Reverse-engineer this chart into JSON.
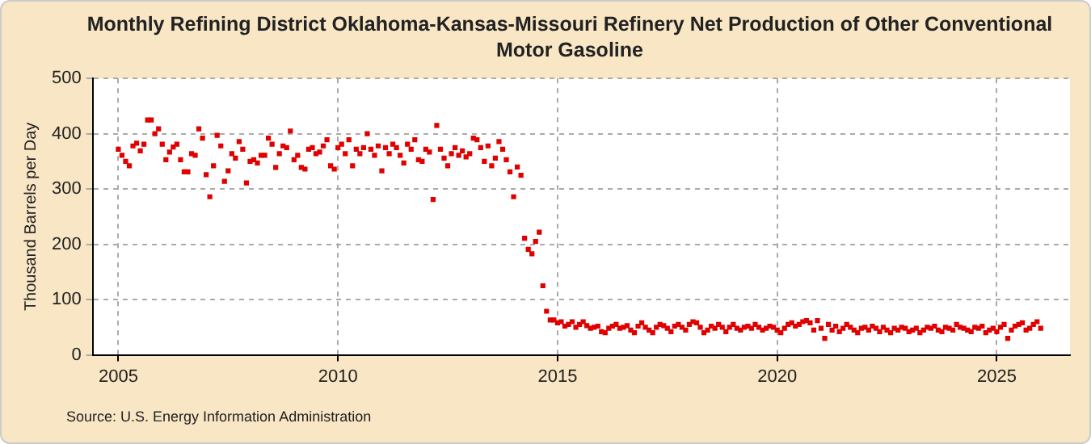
{
  "chart_data": {
    "type": "scatter",
    "title": "Monthly Refining District Oklahoma-Kansas-Missouri Refinery Net Production of Other Conventional Motor Gasoline",
    "ylabel": "Thousand Barrels per Day",
    "annotations": [
      "Source: U.S. Energy Information Administration"
    ],
    "xlim": [
      "2004-06",
      "2026-09"
    ],
    "xticks": [
      "2005",
      "2010",
      "2015",
      "2020",
      "2025"
    ],
    "ylim": [
      0,
      500
    ],
    "yticks": [
      0,
      100,
      200,
      300,
      400,
      500
    ],
    "grid": true,
    "marker": "square",
    "legend": false,
    "series": [
      {
        "color": "#e00000",
        "x": [
          "2005-01",
          "2005-02",
          "2005-03",
          "2005-04",
          "2005-05",
          "2005-06",
          "2005-07",
          "2005-08",
          "2005-09",
          "2005-10",
          "2005-11",
          "2005-12",
          "2006-01",
          "2006-02",
          "2006-03",
          "2006-04",
          "2006-05",
          "2006-06",
          "2006-07",
          "2006-08",
          "2006-09",
          "2006-10",
          "2006-11",
          "2006-12",
          "2007-01",
          "2007-02",
          "2007-03",
          "2007-04",
          "2007-05",
          "2007-06",
          "2007-07",
          "2007-08",
          "2007-09",
          "2007-10",
          "2007-11",
          "2007-12",
          "2008-01",
          "2008-02",
          "2008-03",
          "2008-04",
          "2008-05",
          "2008-06",
          "2008-07",
          "2008-08",
          "2008-09",
          "2008-10",
          "2008-11",
          "2008-12",
          "2009-01",
          "2009-02",
          "2009-03",
          "2009-04",
          "2009-05",
          "2009-06",
          "2009-07",
          "2009-08",
          "2009-09",
          "2009-10",
          "2009-11",
          "2009-12",
          "2010-01",
          "2010-02",
          "2010-03",
          "2010-04",
          "2010-05",
          "2010-06",
          "2010-07",
          "2010-08",
          "2010-09",
          "2010-10",
          "2010-11",
          "2010-12",
          "2011-01",
          "2011-02",
          "2011-03",
          "2011-04",
          "2011-05",
          "2011-06",
          "2011-07",
          "2011-08",
          "2011-09",
          "2011-10",
          "2011-11",
          "2011-12",
          "2012-01",
          "2012-02",
          "2012-03",
          "2012-04",
          "2012-05",
          "2012-06",
          "2012-07",
          "2012-08",
          "2012-09",
          "2012-10",
          "2012-11",
          "2012-12",
          "2013-01",
          "2013-02",
          "2013-03",
          "2013-04",
          "2013-05",
          "2013-06",
          "2013-07",
          "2013-08",
          "2013-09",
          "2013-10",
          "2013-11",
          "2013-12",
          "2014-01",
          "2014-02",
          "2014-03",
          "2014-04",
          "2014-05",
          "2014-06",
          "2014-07",
          "2014-08",
          "2014-09",
          "2014-10",
          "2014-11",
          "2014-12",
          "2015-01",
          "2015-02",
          "2015-03",
          "2015-04",
          "2015-05",
          "2015-06",
          "2015-07",
          "2015-08",
          "2015-09",
          "2015-10",
          "2015-11",
          "2015-12",
          "2016-01",
          "2016-02",
          "2016-03",
          "2016-04",
          "2016-05",
          "2016-06",
          "2016-07",
          "2016-08",
          "2016-09",
          "2016-10",
          "2016-11",
          "2016-12",
          "2017-01",
          "2017-02",
          "2017-03",
          "2017-04",
          "2017-05",
          "2017-06",
          "2017-07",
          "2017-08",
          "2017-09",
          "2017-10",
          "2017-11",
          "2017-12",
          "2018-01",
          "2018-02",
          "2018-03",
          "2018-04",
          "2018-05",
          "2018-06",
          "2018-07",
          "2018-08",
          "2018-09",
          "2018-10",
          "2018-11",
          "2018-12",
          "2019-01",
          "2019-02",
          "2019-03",
          "2019-04",
          "2019-05",
          "2019-06",
          "2019-07",
          "2019-08",
          "2019-09",
          "2019-10",
          "2019-11",
          "2019-12",
          "2020-01",
          "2020-02",
          "2020-03",
          "2020-04",
          "2020-05",
          "2020-06",
          "2020-07",
          "2020-08",
          "2020-09",
          "2020-10",
          "2020-11",
          "2020-12",
          "2021-01",
          "2021-02",
          "2021-03",
          "2021-04",
          "2021-05",
          "2021-06",
          "2021-07",
          "2021-08",
          "2021-09",
          "2021-10",
          "2021-11",
          "2021-12",
          "2022-01",
          "2022-02",
          "2022-03",
          "2022-04",
          "2022-05",
          "2022-06",
          "2022-07",
          "2022-08",
          "2022-09",
          "2022-10",
          "2022-11",
          "2022-12",
          "2023-01",
          "2023-02",
          "2023-03",
          "2023-04",
          "2023-05",
          "2023-06",
          "2023-07",
          "2023-08",
          "2023-09",
          "2023-10",
          "2023-11",
          "2023-12",
          "2024-01",
          "2024-02",
          "2024-03",
          "2024-04",
          "2024-05",
          "2024-06",
          "2024-07",
          "2024-08",
          "2024-09",
          "2024-10",
          "2024-11",
          "2024-12",
          "2025-01",
          "2025-02",
          "2025-03",
          "2025-04",
          "2025-05",
          "2025-06",
          "2025-07",
          "2025-08",
          "2025-09",
          "2025-10",
          "2025-11",
          "2025-12",
          "2026-01"
        ],
        "values": [
          372,
          361,
          350,
          342,
          378,
          383,
          369,
          381,
          425,
          425,
          400,
          409,
          381,
          353,
          367,
          376,
          381,
          353,
          331,
          331,
          364,
          361,
          409,
          392,
          326,
          286,
          342,
          397,
          378,
          314,
          333,
          364,
          356,
          386,
          372,
          311,
          350,
          353,
          347,
          361,
          361,
          392,
          381,
          339,
          364,
          378,
          375,
          405,
          353,
          361,
          339,
          336,
          372,
          375,
          364,
          367,
          378,
          389,
          342,
          336,
          375,
          381,
          364,
          389,
          342,
          372,
          364,
          375,
          400,
          372,
          361,
          378,
          333,
          375,
          364,
          381,
          375,
          361,
          347,
          381,
          372,
          389,
          353,
          350,
          372,
          367,
          281,
          415,
          372,
          356,
          342,
          364,
          375,
          361,
          369,
          358,
          364,
          392,
          389,
          375,
          350,
          378,
          342,
          356,
          386,
          372,
          353,
          331,
          286,
          340,
          325,
          211,
          191,
          183,
          205,
          222,
          125,
          79,
          63,
          63,
          58,
          60,
          52,
          55,
          60,
          50,
          55,
          60,
          53,
          48,
          50,
          52,
          42,
          40,
          48,
          52,
          55,
          48,
          50,
          53,
          45,
          40,
          52,
          58,
          50,
          45,
          40,
          50,
          55,
          53,
          48,
          42,
          52,
          55,
          50,
          45,
          55,
          60,
          58,
          50,
          40,
          45,
          52,
          48,
          55,
          50,
          42,
          50,
          55,
          48,
          45,
          50,
          52,
          48,
          55,
          50,
          45,
          48,
          52,
          50,
          45,
          40,
          48,
          55,
          58,
          52,
          55,
          60,
          62,
          58,
          45,
          62,
          48,
          30,
          55,
          45,
          52,
          42,
          48,
          55,
          50,
          45,
          40,
          48,
          50,
          45,
          52,
          48,
          42,
          50,
          45,
          40,
          48,
          45,
          50,
          48,
          42,
          45,
          48,
          40,
          45,
          50,
          48,
          52,
          45,
          42,
          50,
          48,
          45,
          55,
          50,
          48,
          45,
          42,
          50,
          48,
          52,
          40,
          45,
          48,
          42,
          50,
          55,
          30,
          45,
          52,
          55,
          58,
          45,
          48,
          55,
          60,
          48
        ]
      }
    ]
  }
}
